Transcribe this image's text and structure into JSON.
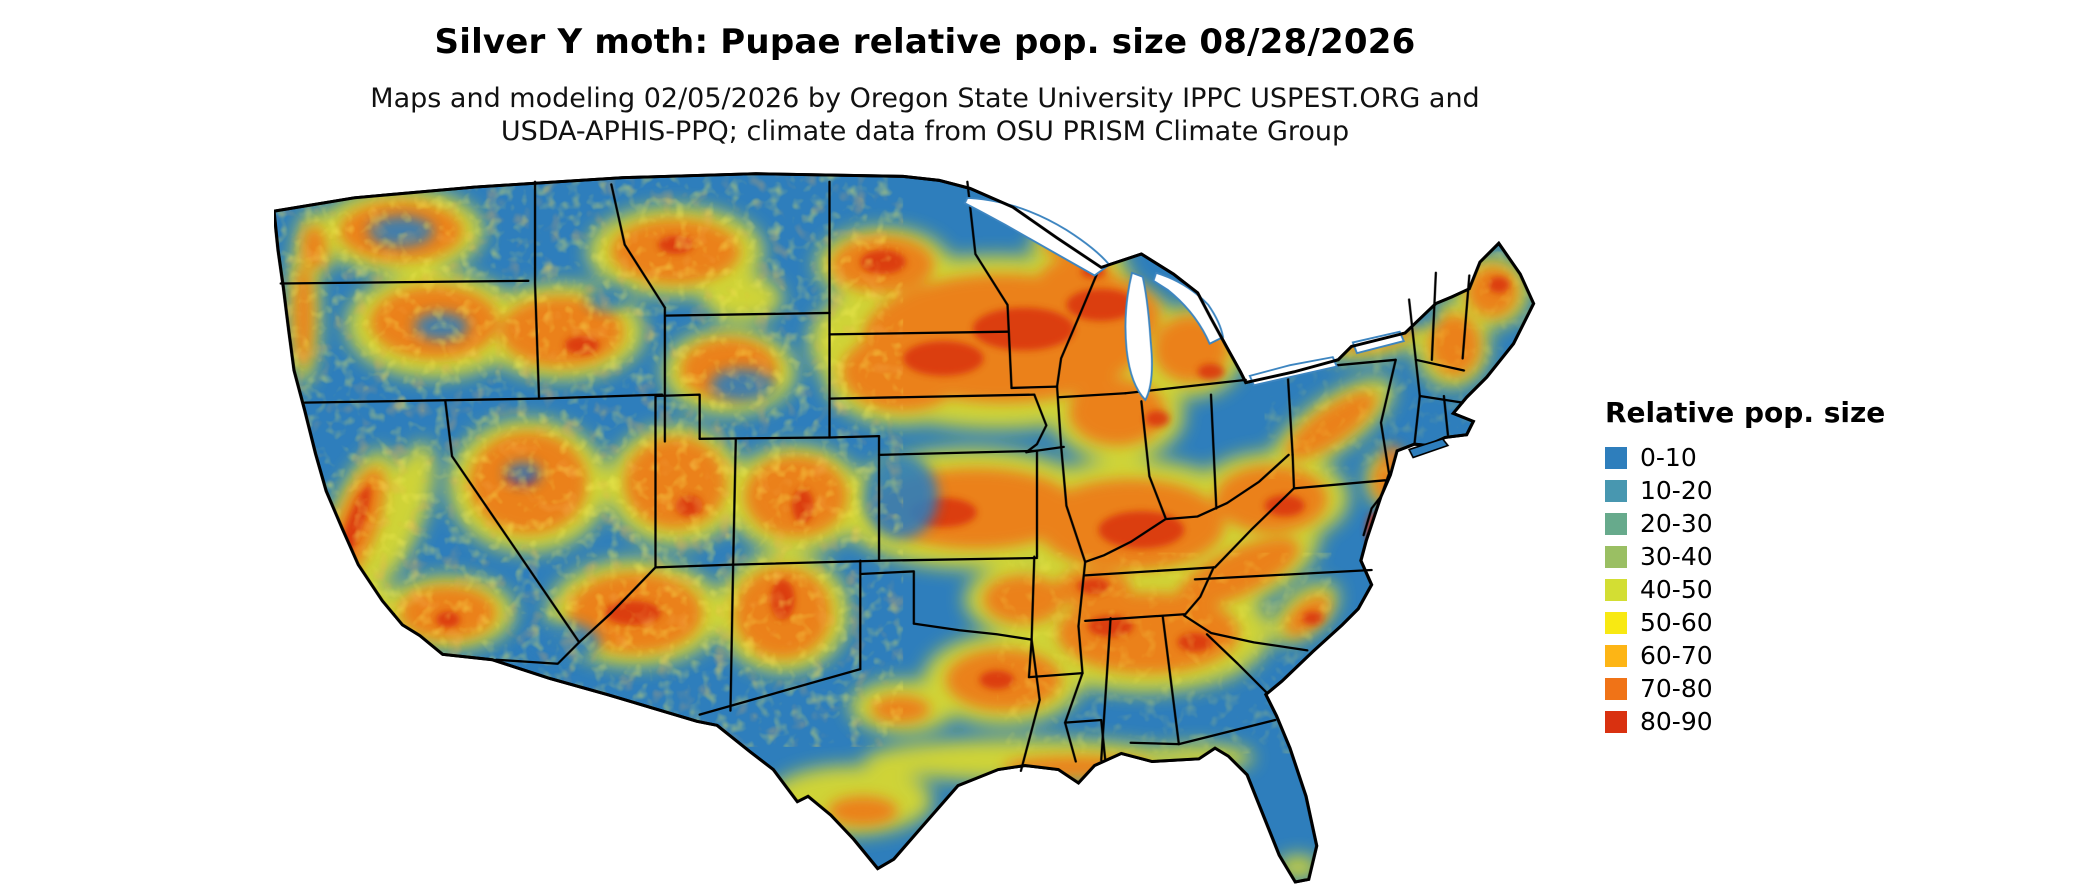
{
  "header": {
    "title": "Silver Y moth: Pupae relative pop. size 08/28/2026",
    "subtitle_line1": "Maps and modeling 02/05/2026 by Oregon State University IPPC USPEST.ORG and",
    "subtitle_line2": "USDA-APHIS-PPQ; climate data from OSU PRISM Climate Group"
  },
  "legend": {
    "title": "Relative pop. size",
    "items": [
      {
        "label": "0-10",
        "color": "#2e7ebc"
      },
      {
        "label": "10-20",
        "color": "#4897b0"
      },
      {
        "label": "20-30",
        "color": "#67aa8c"
      },
      {
        "label": "30-40",
        "color": "#9abf63"
      },
      {
        "label": "40-50",
        "color": "#d3de33"
      },
      {
        "label": "50-60",
        "color": "#f8e912"
      },
      {
        "label": "60-70",
        "color": "#fdb515"
      },
      {
        "label": "70-80",
        "color": "#f07317"
      },
      {
        "label": "80-90",
        "color": "#d93110"
      }
    ]
  },
  "map": {
    "base_color": "#2e7ebc",
    "border_color": "#000000"
  }
}
